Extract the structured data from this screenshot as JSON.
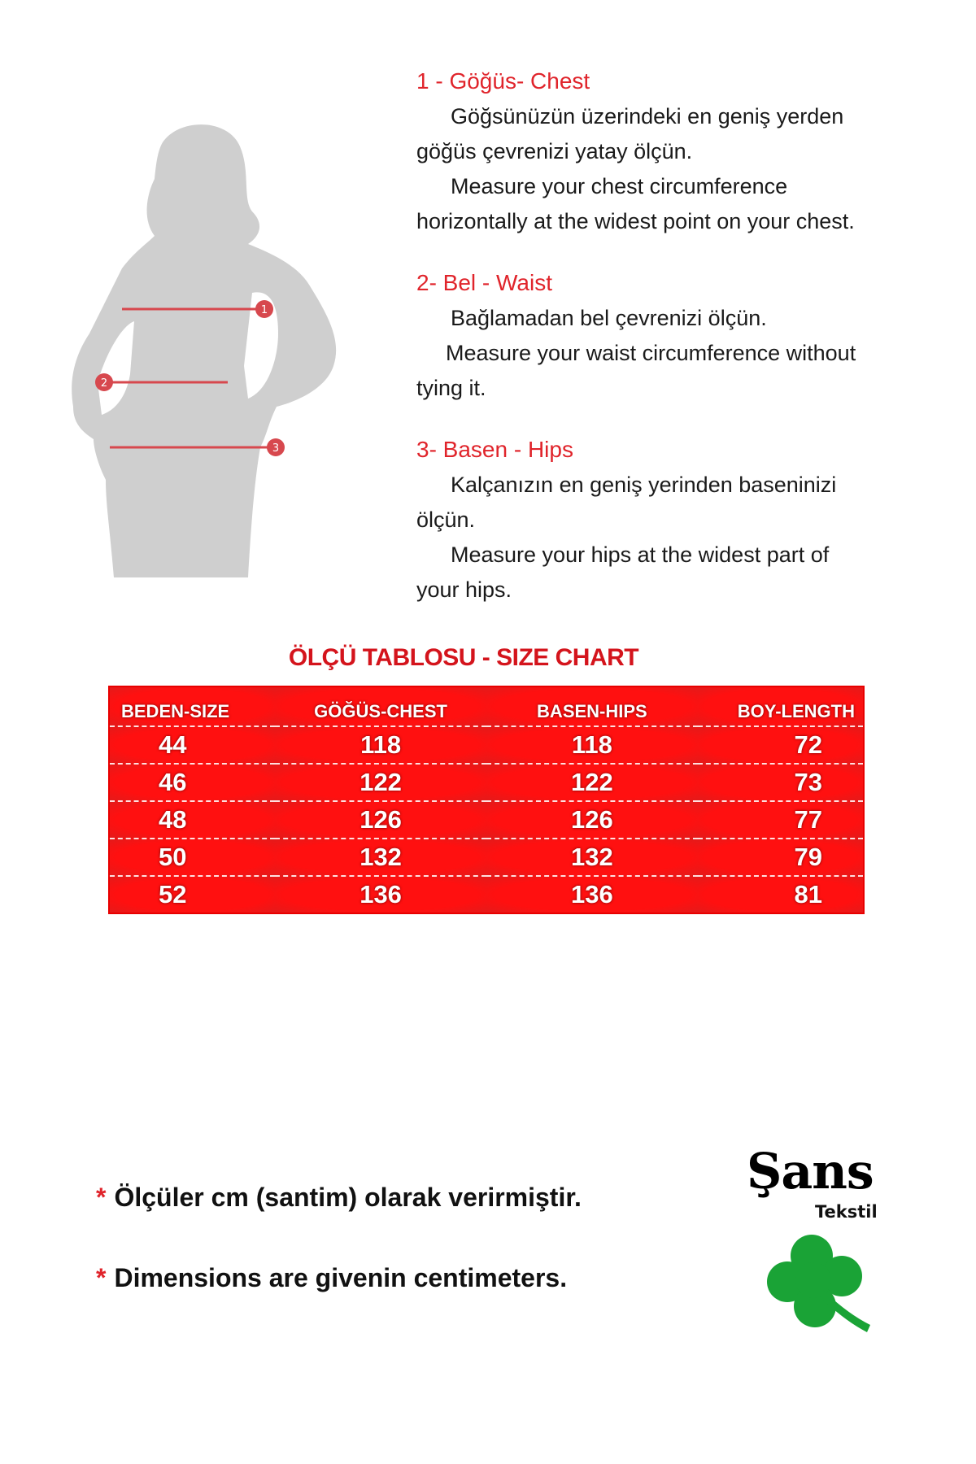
{
  "figure": {
    "markers": [
      "1",
      "2",
      "3"
    ]
  },
  "sections": [
    {
      "title": "1 - Göğüs- Chest",
      "tr_first": "Göğsünüzün üzerindeki en geniş yerden",
      "tr_rest": "göğüs çevrenizi yatay ölçün.",
      "en_first": "Measure your chest circumference",
      "en_rest": "horizontally at the widest point on your chest."
    },
    {
      "title": "2- Bel - Waist",
      "tr_first": "Bağlamadan bel çevrenizi ölçün.",
      "tr_rest": "",
      "en_first": "Measure your waist circumference without",
      "en_rest": "tying it."
    },
    {
      "title": "3- Basen - Hips",
      "tr_first": "Kalçanızın en geniş yerinden baseninizi",
      "tr_rest": "ölçün.",
      "en_first": "Measure your hips at the widest part of",
      "en_rest": "your hips."
    }
  ],
  "size_chart": {
    "title": "ÖLÇÜ TABLOSU - SIZE CHART",
    "headers": [
      "BEDEN-SIZE",
      "GÖĞÜS-CHEST",
      "BASEN-HIPS",
      "BOY-LENGTH"
    ],
    "rows": [
      [
        "44",
        "118",
        "118",
        "72"
      ],
      [
        "46",
        "122",
        "122",
        "73"
      ],
      [
        "48",
        "126",
        "126",
        "77"
      ],
      [
        "50",
        "132",
        "132",
        "79"
      ],
      [
        "52",
        "136",
        "136",
        "81"
      ]
    ]
  },
  "notes": {
    "star": "*",
    "tr": "Ölçüler  cm (santim) olarak verirmiştir.",
    "en": "Dimensions are givenin centimeters."
  },
  "logo": {
    "name": "Şans",
    "sub": "Tekstil"
  },
  "colors": {
    "accent": "#e0242b",
    "table_bg": "#ff1010",
    "clover": "#1aa336",
    "silhouette": "#cfcfcf"
  }
}
